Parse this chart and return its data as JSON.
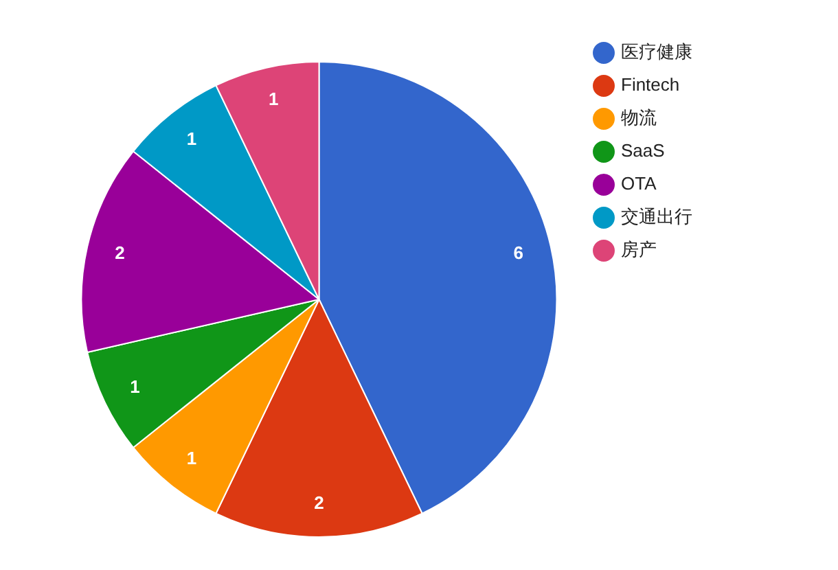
{
  "chart_data": {
    "type": "pie",
    "categories": [
      "医疗健康",
      "Fintech",
      "物流",
      "SaaS",
      "OTA",
      "交通出行",
      "房产"
    ],
    "values": [
      6,
      2,
      1,
      1,
      2,
      1,
      1
    ],
    "colors": [
      "#3366cc",
      "#dc3912",
      "#ff9900",
      "#109618",
      "#990099",
      "#0099c6",
      "#dd4477"
    ],
    "data_labels": true,
    "legend": "right"
  }
}
